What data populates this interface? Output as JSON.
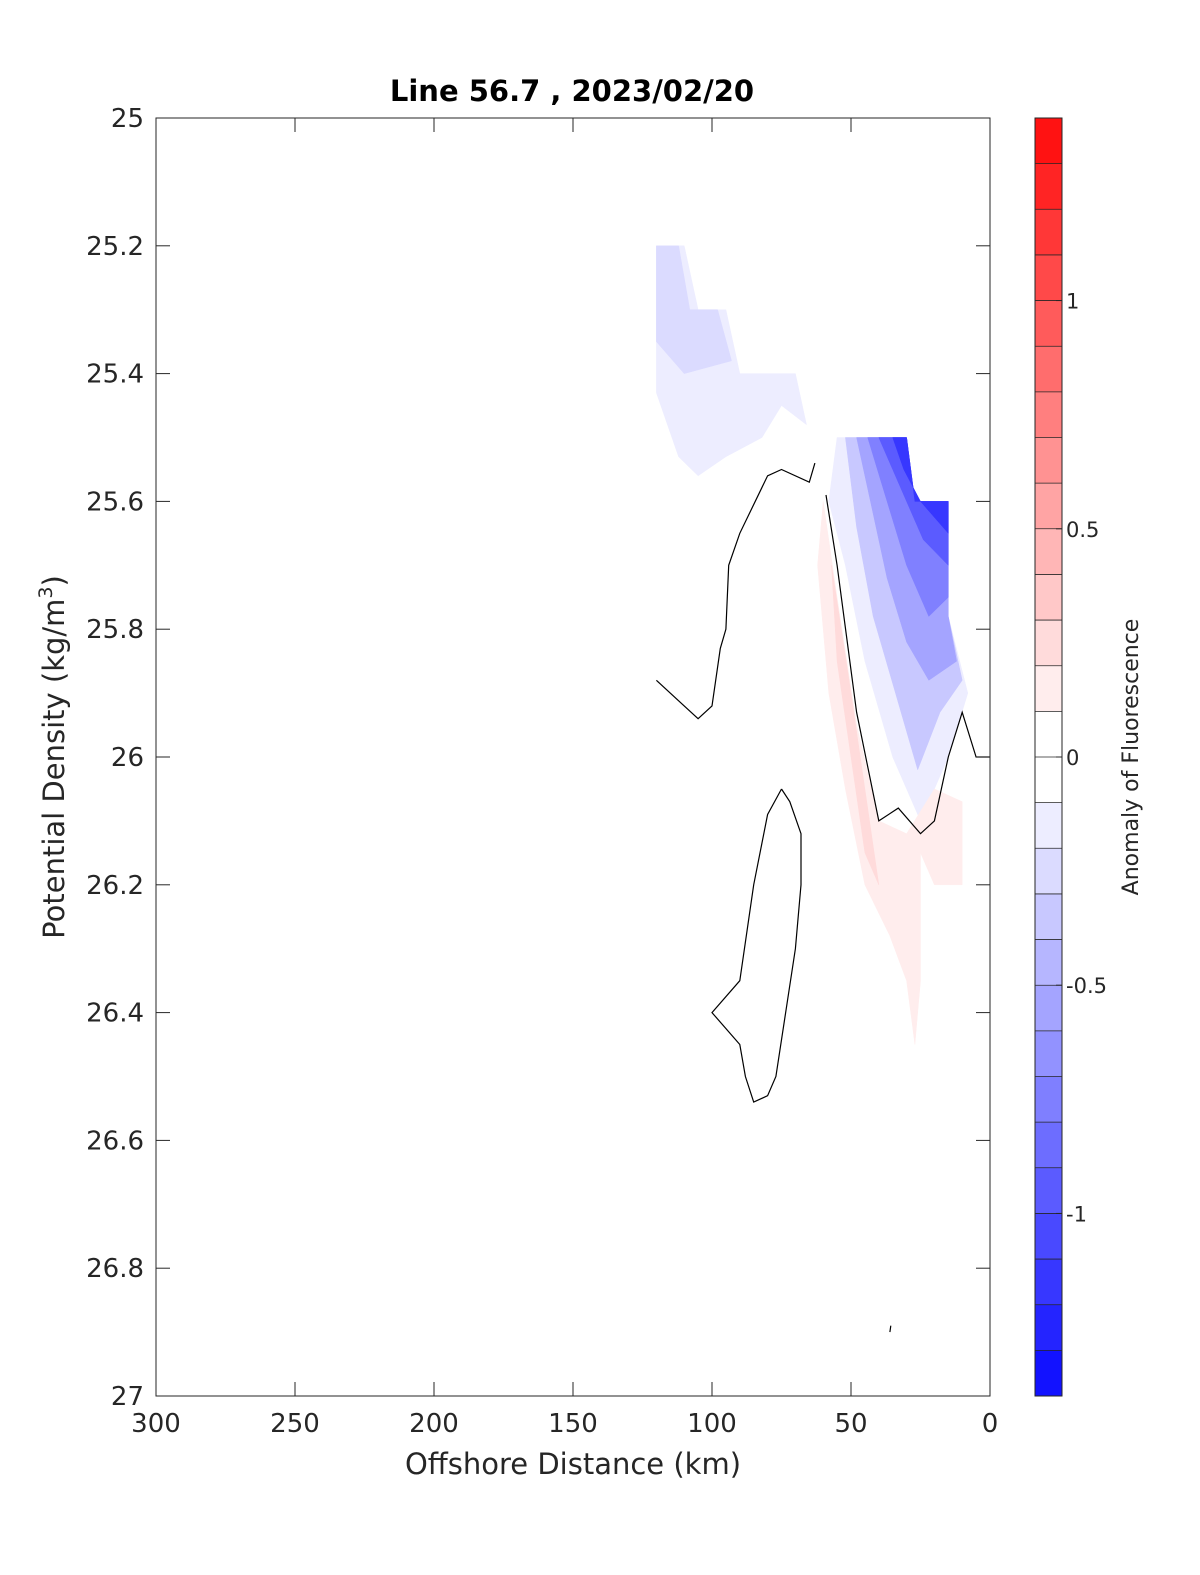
{
  "chart_data": {
    "type": "contour",
    "title": "Line 56.7 , 2023/02/20",
    "xlabel": "Offshore Distance (km)",
    "ylabel_prefix": "Potential Density (kg/m",
    "ylabel_sup": "3",
    "ylabel_suffix": ")",
    "x_reversed": true,
    "y_reversed": true,
    "xlim": [
      0,
      300
    ],
    "ylim": [
      25,
      27
    ],
    "x_ticks": [
      300,
      250,
      200,
      150,
      100,
      50,
      0
    ],
    "x_tick_labels": [
      "300",
      "250",
      "200",
      "150",
      "100",
      "50",
      "0"
    ],
    "y_ticks": [
      25,
      25.2,
      25.4,
      25.6,
      25.8,
      26,
      26.2,
      26.4,
      26.6,
      26.8,
      27
    ],
    "y_tick_labels": [
      "25",
      "25.2",
      "25.4",
      "25.6",
      "25.8",
      "26",
      "26.2",
      "26.4",
      "26.6",
      "26.8",
      "27"
    ],
    "colorbar": {
      "label": "Anomaly of Fluorescence",
      "range": [
        -1.4,
        1.4
      ],
      "step": 0.1,
      "colormap": "blue-white-red",
      "ticks": [
        1,
        0.5,
        0,
        -0.5,
        -1
      ],
      "tick_labels": [
        "1",
        "0.5",
        "0",
        "-0.5",
        "-1"
      ],
      "low_color": "#0000ff",
      "mid_color": "#ffffff",
      "high_color": "#ff0000"
    },
    "filled_regions": [
      {
        "level": -0.1,
        "points": [
          [
            120,
            25.2
          ],
          [
            110,
            25.2
          ],
          [
            105,
            25.3
          ],
          [
            95,
            25.3
          ],
          [
            90,
            25.4
          ],
          [
            70,
            25.4
          ],
          [
            66,
            25.48
          ],
          [
            75,
            25.45
          ],
          [
            82,
            25.5
          ],
          [
            95,
            25.53
          ],
          [
            105,
            25.56
          ],
          [
            112,
            25.53
          ],
          [
            120,
            25.43
          ]
        ]
      },
      {
        "level": -0.2,
        "points": [
          [
            120,
            25.2
          ],
          [
            112,
            25.2
          ],
          [
            108,
            25.3
          ],
          [
            98,
            25.3
          ],
          [
            93,
            25.38
          ],
          [
            110,
            25.4
          ],
          [
            120,
            25.35
          ]
        ]
      },
      {
        "level": -0.1,
        "points": [
          [
            55,
            25.5
          ],
          [
            30,
            25.5
          ],
          [
            27,
            25.6
          ],
          [
            15,
            25.6
          ],
          [
            15,
            25.78
          ],
          [
            8,
            25.9
          ],
          [
            15,
            26.0
          ],
          [
            25,
            26.1
          ],
          [
            35,
            26.0
          ],
          [
            45,
            25.85
          ],
          [
            52,
            25.7
          ],
          [
            58,
            25.6
          ]
        ]
      },
      {
        "level": -0.3,
        "points": [
          [
            52,
            25.5
          ],
          [
            30,
            25.5
          ],
          [
            27,
            25.6
          ],
          [
            15,
            25.6
          ],
          [
            15,
            25.78
          ],
          [
            10,
            25.88
          ],
          [
            18,
            25.93
          ],
          [
            26,
            26.02
          ],
          [
            34,
            25.9
          ],
          [
            42,
            25.78
          ],
          [
            48,
            25.64
          ]
        ]
      },
      {
        "level": -0.5,
        "points": [
          [
            48,
            25.5
          ],
          [
            30,
            25.5
          ],
          [
            27,
            25.6
          ],
          [
            15,
            25.6
          ],
          [
            15,
            25.78
          ],
          [
            12,
            25.85
          ],
          [
            22,
            25.88
          ],
          [
            30,
            25.82
          ],
          [
            37,
            25.72
          ],
          [
            43,
            25.6
          ]
        ]
      },
      {
        "level": -0.7,
        "points": [
          [
            44,
            25.5
          ],
          [
            30,
            25.5
          ],
          [
            27,
            25.6
          ],
          [
            15,
            25.6
          ],
          [
            15,
            25.75
          ],
          [
            22,
            25.78
          ],
          [
            30,
            25.7
          ],
          [
            37,
            25.6
          ]
        ]
      },
      {
        "level": -0.9,
        "points": [
          [
            40,
            25.5
          ],
          [
            30,
            25.5
          ],
          [
            27,
            25.6
          ],
          [
            15,
            25.6
          ],
          [
            15,
            25.7
          ],
          [
            24,
            25.66
          ],
          [
            32,
            25.58
          ]
        ]
      },
      {
        "level": -1.1,
        "points": [
          [
            35,
            25.5
          ],
          [
            30,
            25.5
          ],
          [
            27,
            25.6
          ],
          [
            15,
            25.6
          ],
          [
            15,
            25.65
          ],
          [
            25,
            25.6
          ],
          [
            31,
            25.55
          ]
        ]
      },
      {
        "level": 0.1,
        "points": [
          [
            60,
            25.6
          ],
          [
            55,
            25.75
          ],
          [
            48,
            25.95
          ],
          [
            40,
            26.1
          ],
          [
            30,
            26.12
          ],
          [
            20,
            26.05
          ],
          [
            10,
            26.07
          ],
          [
            10,
            26.2
          ],
          [
            20,
            26.2
          ],
          [
            25,
            26.15
          ],
          [
            25,
            26.35
          ],
          [
            27,
            26.45
          ],
          [
            30,
            26.35
          ],
          [
            36,
            26.28
          ],
          [
            45,
            26.2
          ],
          [
            52,
            26.05
          ],
          [
            58,
            25.9
          ],
          [
            62,
            25.7
          ]
        ]
      },
      {
        "level": 0.2,
        "points": [
          [
            57,
            25.7
          ],
          [
            50,
            25.9
          ],
          [
            45,
            26.05
          ],
          [
            40,
            26.2
          ],
          [
            45,
            26.15
          ],
          [
            50,
            26.0
          ],
          [
            55,
            25.85
          ]
        ]
      }
    ],
    "zero_contours": [
      [
        [
          120,
          25.88
        ],
        [
          110,
          25.92
        ],
        [
          105,
          25.94
        ],
        [
          100,
          25.92
        ],
        [
          97,
          25.83
        ],
        [
          95,
          25.8
        ],
        [
          94,
          25.7
        ],
        [
          90,
          25.65
        ],
        [
          80,
          25.56
        ],
        [
          75,
          25.55
        ],
        [
          65,
          25.57
        ],
        [
          63,
          25.54
        ]
      ],
      [
        [
          59,
          25.59
        ],
        [
          55,
          25.7
        ],
        [
          48,
          25.93
        ],
        [
          40,
          26.1
        ],
        [
          33,
          26.08
        ],
        [
          25,
          26.12
        ],
        [
          20,
          26.1
        ],
        [
          15,
          26.0
        ],
        [
          10,
          25.93
        ],
        [
          5,
          26.0
        ],
        [
          0,
          26.0
        ]
      ],
      [
        [
          75,
          26.05
        ],
        [
          80,
          26.09
        ],
        [
          85,
          26.2
        ],
        [
          90,
          26.35
        ],
        [
          100,
          26.4
        ],
        [
          90,
          26.45
        ],
        [
          88,
          26.5
        ],
        [
          85,
          26.54
        ],
        [
          80,
          26.53
        ],
        [
          77,
          26.5
        ],
        [
          70,
          26.3
        ],
        [
          68,
          26.2
        ],
        [
          68,
          26.12
        ],
        [
          72,
          26.07
        ],
        [
          75,
          26.05
        ]
      ],
      [
        [
          36,
          26.9
        ],
        [
          35.7,
          26.89
        ]
      ]
    ]
  }
}
